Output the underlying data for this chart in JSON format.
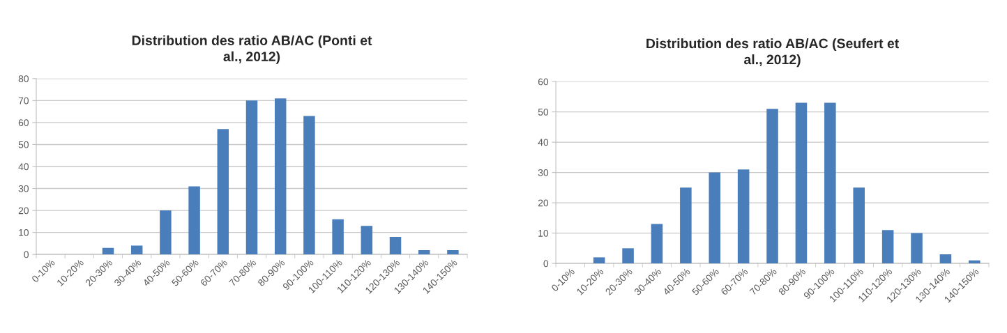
{
  "chart_data": [
    {
      "type": "bar",
      "title": "Distribution des ratio AB/AC (Ponti et\nal., 2012)",
      "categories": [
        "0-10%",
        "10-20%",
        "20-30%",
        "30-40%",
        "40-50%",
        "50-60%",
        "60-70%",
        "70-80%",
        "80-90%",
        "90-100%",
        "100-110%",
        "110-120%",
        "120-130%",
        "130-140%",
        "140-150%"
      ],
      "values": [
        0,
        0,
        3,
        4,
        20,
        31,
        57,
        70,
        71,
        63,
        16,
        13,
        8,
        2,
        2
      ],
      "color": "#4a7ebb",
      "ylim": [
        0,
        80
      ],
      "yticks": [
        0,
        10,
        20,
        30,
        40,
        50,
        60,
        70,
        80
      ],
      "grid": "y"
    },
    {
      "type": "bar",
      "title": "Distribution des ratio AB/AC (Seufert et\nal., 2012)",
      "categories": [
        "0-10%",
        "10-20%",
        "20-30%",
        "30-40%",
        "40-50%",
        "50-60%",
        "60-70%",
        "70-80%",
        "80-90%",
        "90-100%",
        "100-110%",
        "110-120%",
        "120-130%",
        "130-140%",
        "140-150%"
      ],
      "values": [
        0,
        2,
        5,
        13,
        25,
        30,
        31,
        51,
        53,
        53,
        25,
        11,
        10,
        3,
        1
      ],
      "color": "#4a7ebb",
      "ylim": [
        0,
        60
      ],
      "yticks": [
        0,
        10,
        20,
        30,
        40,
        50,
        60
      ],
      "grid": "y"
    }
  ]
}
